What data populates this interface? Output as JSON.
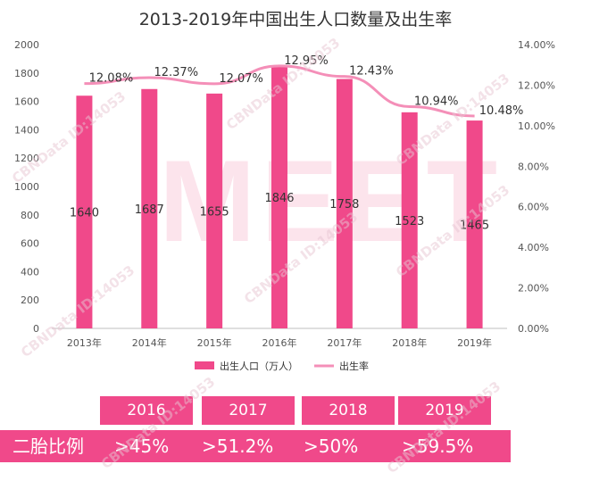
{
  "chart_data": {
    "type": "bar",
    "title": "2013-2019年中国出生人口数量及出生率",
    "categories": [
      "2013年",
      "2014年",
      "2015年",
      "2016年",
      "2017年",
      "2018年",
      "2019年"
    ],
    "series": [
      {
        "name": "出生人口（万人）",
        "type": "bar",
        "axis": "left",
        "values": [
          1640,
          1687,
          1655,
          1846,
          1758,
          1523,
          1465
        ]
      },
      {
        "name": "出生率",
        "type": "line",
        "axis": "right",
        "values": [
          12.08,
          12.37,
          12.07,
          12.95,
          12.43,
          10.94,
          10.48
        ]
      }
    ],
    "y_left": {
      "range": [
        0,
        2000
      ],
      "ticks": [
        "0",
        "200",
        "400",
        "600",
        "800",
        "1000",
        "1200",
        "1400",
        "1600",
        "1800",
        "2000"
      ]
    },
    "y_right": {
      "range": [
        0,
        14
      ],
      "ticks": [
        "0.00%",
        "2.00%",
        "4.00%",
        "6.00%",
        "8.00%",
        "10.00%",
        "12.00%",
        "14.00%"
      ]
    },
    "rate_labels": [
      "12.08%",
      "12.37%",
      "12.07%",
      "12.95%",
      "12.43%",
      "10.94%",
      "10.48%"
    ],
    "legend_position": "bottom",
    "grid": false,
    "colors": {
      "bar": "#f0498a",
      "line": "#f48fb8"
    }
  },
  "second_child": {
    "years": [
      "2016",
      "2017",
      "2018",
      "2019"
    ],
    "label": "二胎比例",
    "values": [
      ">45%",
      ">51.2%",
      ">50%",
      ">59.5%"
    ]
  },
  "watermark": {
    "text": "CBNData ID:14053",
    "big": "MEET"
  }
}
